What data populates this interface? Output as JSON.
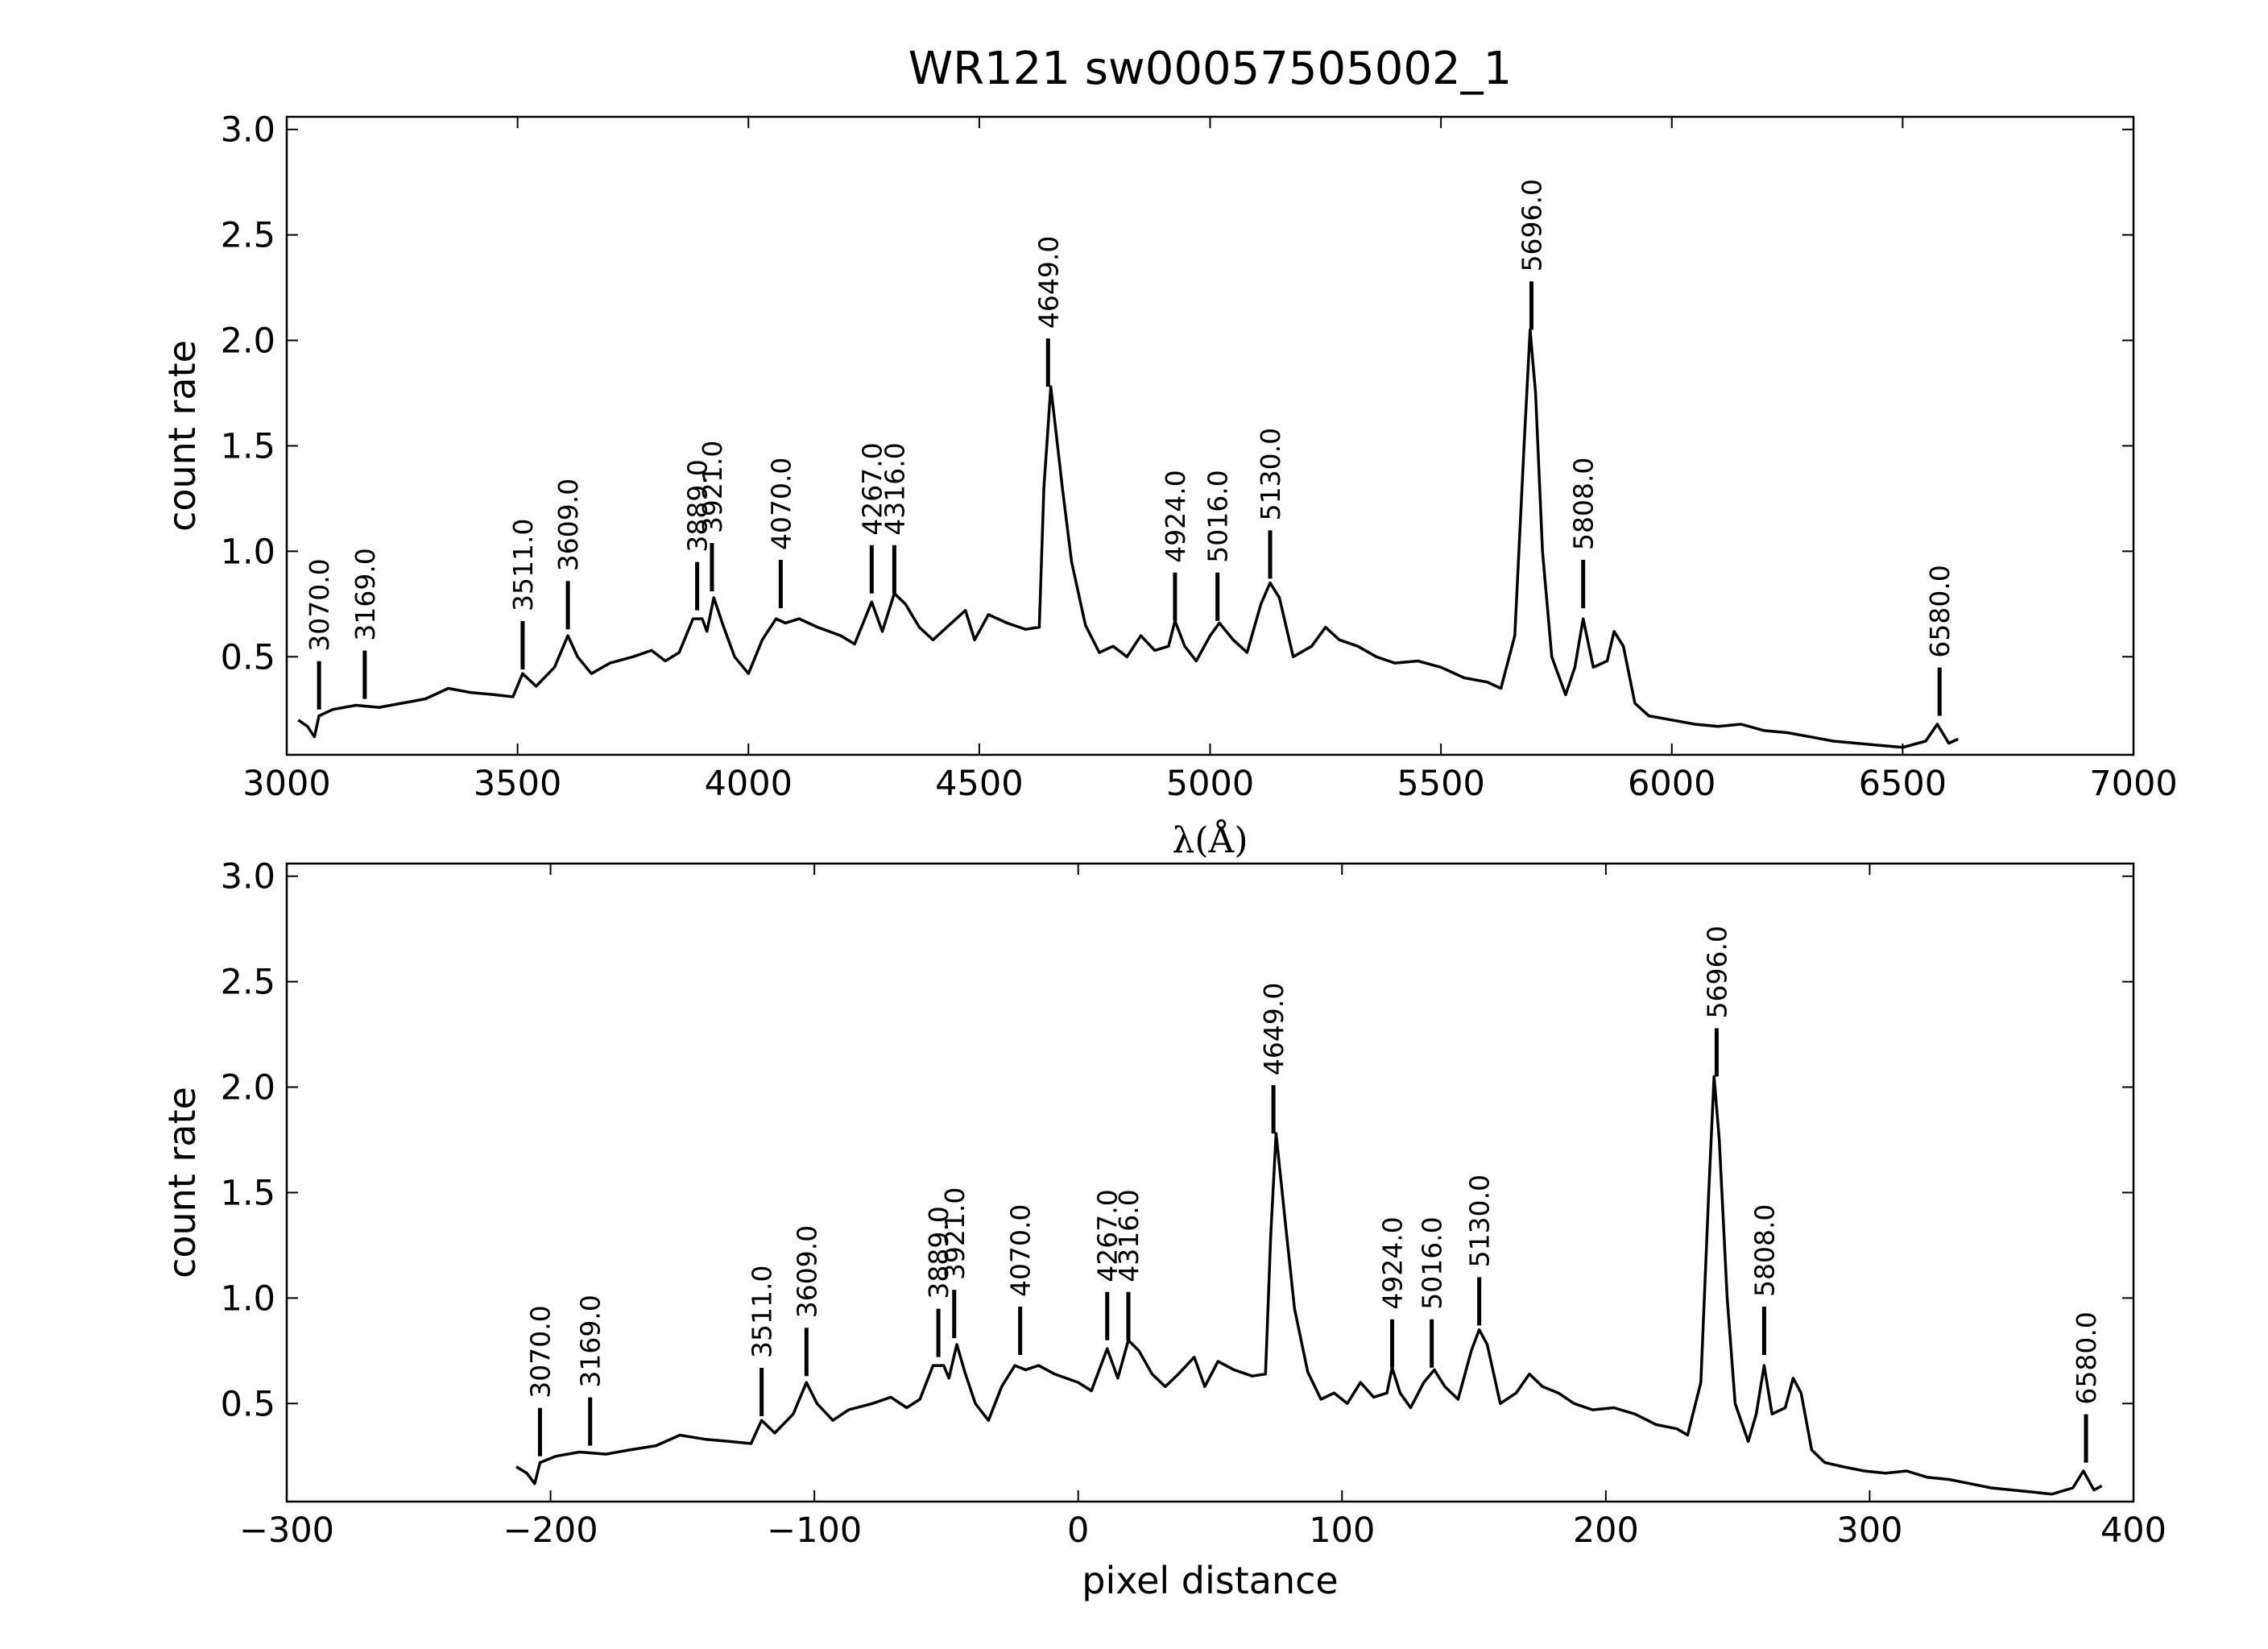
{
  "chart_data": [
    {
      "type": "line",
      "title": "WR121  sw00057505002_1",
      "xlabel": "λ(Å)",
      "ylabel": "count rate",
      "color": "#000000",
      "xlim": [
        3000,
        7000
      ],
      "xticks": [
        3000,
        3500,
        4000,
        4500,
        5000,
        5500,
        6000,
        6500,
        7000
      ],
      "ylim": [
        0.035,
        3.06
      ],
      "yticks": [
        0.5,
        1.0,
        1.5,
        2.0,
        2.5,
        3.0
      ],
      "x": [
        3025,
        3045,
        3060,
        3070,
        3100,
        3150,
        3200,
        3250,
        3300,
        3350,
        3400,
        3450,
        3490,
        3511,
        3540,
        3580,
        3609,
        3630,
        3660,
        3700,
        3750,
        3790,
        3820,
        3850,
        3880,
        3900,
        3910,
        3925,
        3945,
        3970,
        4000,
        4030,
        4060,
        4080,
        4110,
        4150,
        4200,
        4230,
        4267,
        4290,
        4316,
        4340,
        4370,
        4400,
        4430,
        4470,
        4490,
        4520,
        4560,
        4600,
        4630,
        4640,
        4655,
        4680,
        4700,
        4730,
        4760,
        4790,
        4820,
        4850,
        4880,
        4910,
        4924,
        4945,
        4970,
        5000,
        5020,
        5050,
        5080,
        5110,
        5130,
        5150,
        5180,
        5220,
        5250,
        5280,
        5320,
        5360,
        5400,
        5450,
        5500,
        5550,
        5600,
        5630,
        5660,
        5680,
        5693,
        5705,
        5720,
        5740,
        5770,
        5790,
        5808,
        5830,
        5860,
        5875,
        5895,
        5920,
        5950,
        6000,
        6050,
        6100,
        6150,
        6200,
        6250,
        6300,
        6350,
        6400,
        6450,
        6500,
        6550,
        6575,
        6600,
        6620
      ],
      "values": [
        0.2,
        0.17,
        0.12,
        0.22,
        0.25,
        0.27,
        0.26,
        0.28,
        0.3,
        0.35,
        0.33,
        0.32,
        0.31,
        0.42,
        0.36,
        0.45,
        0.6,
        0.5,
        0.42,
        0.47,
        0.5,
        0.53,
        0.48,
        0.52,
        0.68,
        0.68,
        0.62,
        0.78,
        0.65,
        0.5,
        0.42,
        0.58,
        0.68,
        0.66,
        0.68,
        0.64,
        0.6,
        0.56,
        0.76,
        0.62,
        0.8,
        0.75,
        0.64,
        0.58,
        0.64,
        0.72,
        0.58,
        0.7,
        0.66,
        0.63,
        0.64,
        1.3,
        1.78,
        1.3,
        0.95,
        0.65,
        0.52,
        0.55,
        0.5,
        0.6,
        0.53,
        0.55,
        0.67,
        0.55,
        0.48,
        0.6,
        0.66,
        0.58,
        0.52,
        0.75,
        0.85,
        0.78,
        0.5,
        0.55,
        0.64,
        0.58,
        0.55,
        0.5,
        0.47,
        0.48,
        0.45,
        0.4,
        0.38,
        0.35,
        0.6,
        1.5,
        2.05,
        1.75,
        1.0,
        0.5,
        0.32,
        0.45,
        0.68,
        0.45,
        0.48,
        0.62,
        0.55,
        0.28,
        0.22,
        0.2,
        0.18,
        0.17,
        0.18,
        0.15,
        0.14,
        0.12,
        0.1,
        0.09,
        0.08,
        0.07,
        0.1,
        0.18,
        0.09,
        0.11
      ],
      "markers": [
        {
          "x": 3070,
          "y": 0.25,
          "label": "3070.0"
        },
        {
          "x": 3169,
          "y": 0.3,
          "label": "3169.0"
        },
        {
          "x": 3511,
          "y": 0.44,
          "label": "3511.0"
        },
        {
          "x": 3609,
          "y": 0.63,
          "label": "3609.0"
        },
        {
          "x": 3889,
          "y": 0.72,
          "label": "3889.0"
        },
        {
          "x": 3921,
          "y": 0.81,
          "label": "3921.0"
        },
        {
          "x": 4070,
          "y": 0.73,
          "label": "4070.0"
        },
        {
          "x": 4267,
          "y": 0.8,
          "label": "4267.0"
        },
        {
          "x": 4316,
          "y": 0.8,
          "label": "4316.0"
        },
        {
          "x": 4649,
          "y": 1.78,
          "label": "4649.0"
        },
        {
          "x": 4924,
          "y": 0.67,
          "label": "4924.0"
        },
        {
          "x": 5016,
          "y": 0.67,
          "label": "5016.0"
        },
        {
          "x": 5130,
          "y": 0.87,
          "label": "5130.0"
        },
        {
          "x": 5696,
          "y": 2.05,
          "label": "5696.0"
        },
        {
          "x": 5808,
          "y": 0.73,
          "label": "5808.0"
        },
        {
          "x": 6580,
          "y": 0.22,
          "label": "6580.0"
        }
      ]
    },
    {
      "type": "line",
      "xlabel": "pixel distance",
      "ylabel": "count rate",
      "color": "#000000",
      "xlim": [
        -300,
        400
      ],
      "xticks": [
        {
          "value": -300,
          "label": "−300"
        },
        {
          "value": -200,
          "label": "−200"
        },
        {
          "value": -100,
          "label": "−100"
        },
        0,
        100,
        200,
        300,
        400
      ],
      "ylim": [
        0.035,
        3.06
      ],
      "yticks": [
        0.5,
        1.0,
        1.5,
        2.0,
        2.5,
        3.0
      ],
      "x": [
        -213,
        -209,
        -206,
        -204,
        -198,
        -189,
        -179,
        -170,
        -160,
        -151,
        -141,
        -132,
        -124,
        -120,
        -115,
        -108,
        -103,
        -99,
        -93,
        -87,
        -78,
        -71,
        -65,
        -60,
        -55,
        -51,
        -49,
        -46,
        -43,
        -39,
        -34,
        -29,
        -24,
        -20,
        -15,
        -9,
        0,
        5,
        11,
        15,
        19,
        23,
        28,
        33,
        38,
        44,
        48,
        53,
        59,
        66,
        71,
        73,
        75,
        79,
        82,
        87,
        92,
        97,
        102,
        107,
        112,
        117,
        119,
        122,
        126,
        131,
        135,
        139,
        144,
        149,
        152,
        155,
        160,
        166,
        171,
        176,
        182,
        188,
        195,
        203,
        211,
        219,
        227,
        231,
        236,
        239,
        241,
        243,
        246,
        249,
        254,
        257,
        260,
        263,
        268,
        271,
        274,
        278,
        283,
        290,
        298,
        306,
        314,
        322,
        330,
        338,
        346,
        354,
        362,
        369,
        377,
        381,
        385,
        388
      ],
      "values": [
        0.2,
        0.17,
        0.12,
        0.22,
        0.25,
        0.27,
        0.26,
        0.28,
        0.3,
        0.35,
        0.33,
        0.32,
        0.31,
        0.42,
        0.36,
        0.45,
        0.6,
        0.5,
        0.42,
        0.47,
        0.5,
        0.53,
        0.48,
        0.52,
        0.68,
        0.68,
        0.62,
        0.78,
        0.65,
        0.5,
        0.42,
        0.58,
        0.68,
        0.66,
        0.68,
        0.64,
        0.6,
        0.56,
        0.76,
        0.62,
        0.8,
        0.75,
        0.64,
        0.58,
        0.64,
        0.72,
        0.58,
        0.7,
        0.66,
        0.63,
        0.64,
        1.3,
        1.78,
        1.3,
        0.95,
        0.65,
        0.52,
        0.55,
        0.5,
        0.6,
        0.53,
        0.55,
        0.67,
        0.55,
        0.48,
        0.6,
        0.66,
        0.58,
        0.52,
        0.75,
        0.85,
        0.78,
        0.5,
        0.55,
        0.64,
        0.58,
        0.55,
        0.5,
        0.47,
        0.48,
        0.45,
        0.4,
        0.38,
        0.35,
        0.6,
        1.5,
        2.05,
        1.75,
        1.0,
        0.5,
        0.32,
        0.45,
        0.68,
        0.45,
        0.48,
        0.62,
        0.55,
        0.28,
        0.22,
        0.2,
        0.18,
        0.17,
        0.18,
        0.15,
        0.14,
        0.12,
        0.1,
        0.09,
        0.08,
        0.07,
        0.1,
        0.18,
        0.09,
        0.11
      ],
      "markers": [
        {
          "x": -204,
          "y": 0.25,
          "label": "3070.0"
        },
        {
          "x": -185,
          "y": 0.3,
          "label": "3169.0"
        },
        {
          "x": -120,
          "y": 0.44,
          "label": "3511.0"
        },
        {
          "x": -103,
          "y": 0.63,
          "label": "3609.0"
        },
        {
          "x": -53,
          "y": 0.72,
          "label": "3889.0"
        },
        {
          "x": -47,
          "y": 0.81,
          "label": "3921.0"
        },
        {
          "x": -22,
          "y": 0.73,
          "label": "4070.0"
        },
        {
          "x": 11,
          "y": 0.8,
          "label": "4267.0"
        },
        {
          "x": 19,
          "y": 0.8,
          "label": "4316.0"
        },
        {
          "x": 74,
          "y": 1.78,
          "label": "4649.0"
        },
        {
          "x": 119,
          "y": 0.67,
          "label": "4924.0"
        },
        {
          "x": 134,
          "y": 0.67,
          "label": "5016.0"
        },
        {
          "x": 152,
          "y": 0.87,
          "label": "5130.0"
        },
        {
          "x": 242,
          "y": 2.05,
          "label": "5696.0"
        },
        {
          "x": 260,
          "y": 0.73,
          "label": "5808.0"
        },
        {
          "x": 382,
          "y": 0.22,
          "label": "6580.0"
        }
      ]
    }
  ]
}
